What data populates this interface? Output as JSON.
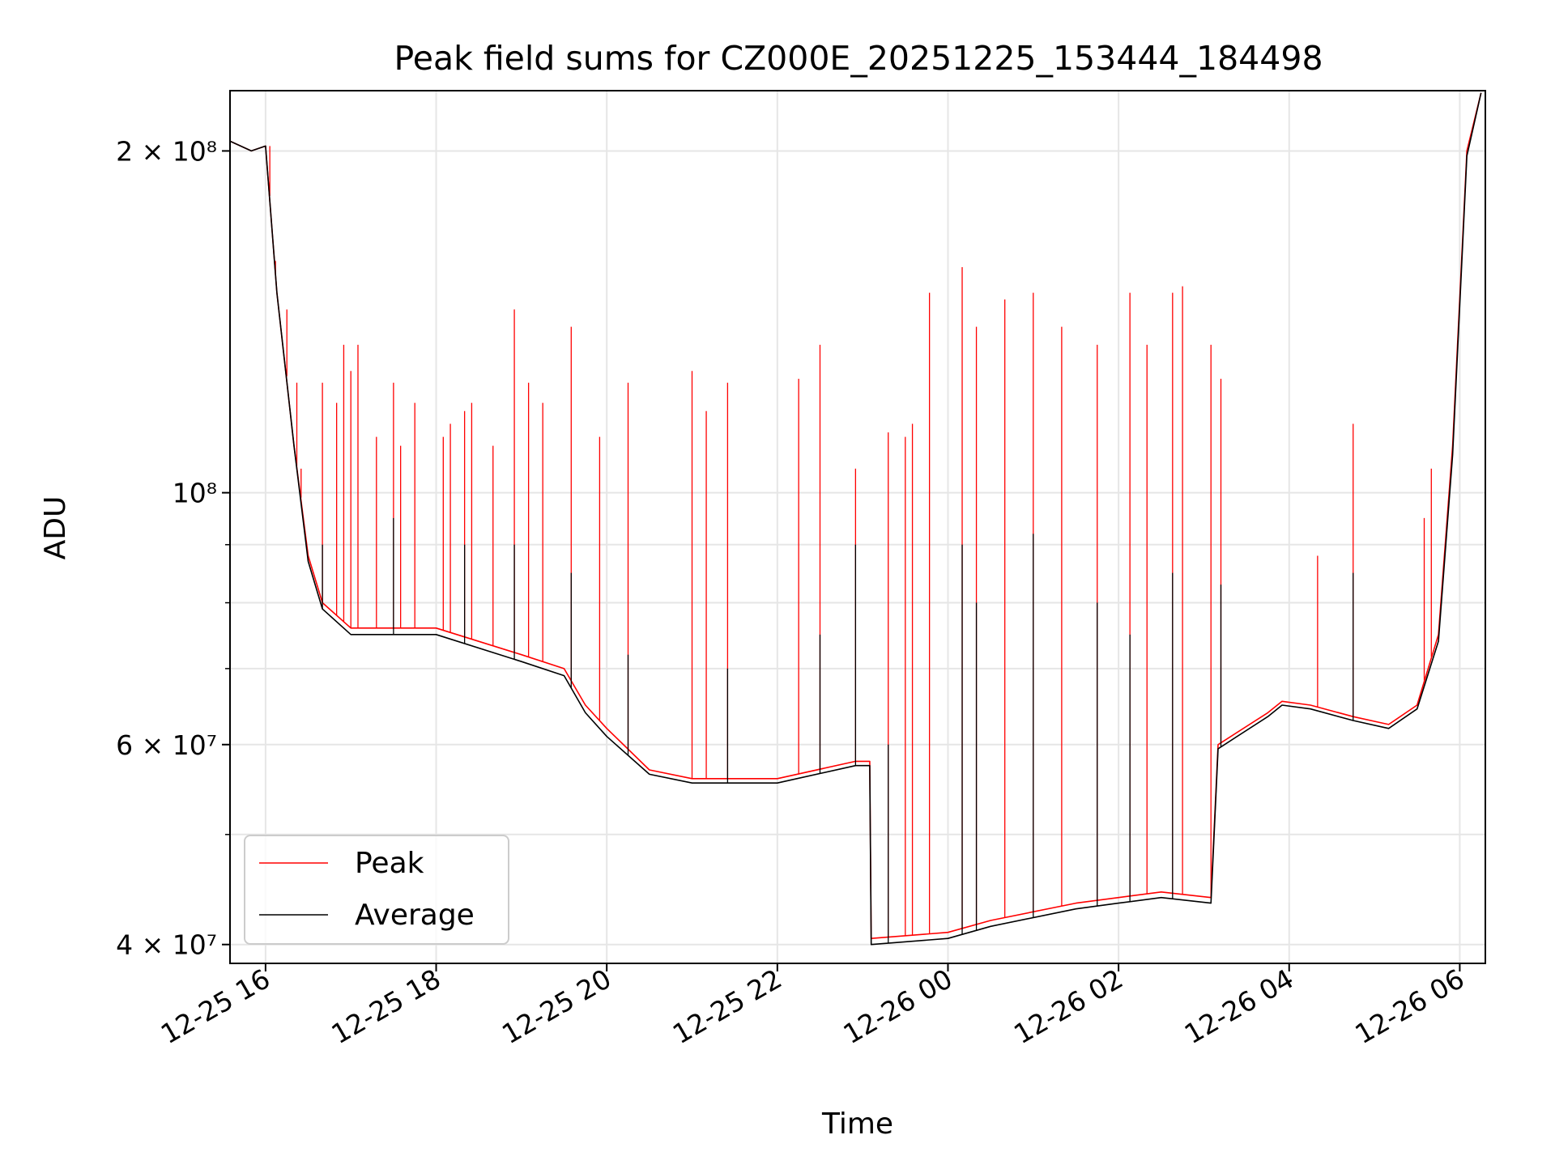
{
  "chart_data": {
    "type": "line",
    "title": "Peak field sums for CZ000E_20251225_153444_184498",
    "xlabel": "Time",
    "ylabel": "ADU",
    "y_scale": "log",
    "ylim": [
      38500000,
      226000000
    ],
    "xlim": [
      "2025-12-25 15:35",
      "2025-12-26 06:18"
    ],
    "x_ticks": [
      {
        "time": "2025-12-25 16:00",
        "label": "12-25 16"
      },
      {
        "time": "2025-12-25 18:00",
        "label": "12-25 18"
      },
      {
        "time": "2025-12-25 20:00",
        "label": "12-25 20"
      },
      {
        "time": "2025-12-25 22:00",
        "label": "12-25 22"
      },
      {
        "time": "2025-12-26 00:00",
        "label": "12-26 00"
      },
      {
        "time": "2025-12-26 02:00",
        "label": "12-26 02"
      },
      {
        "time": "2025-12-26 04:00",
        "label": "12-26 04"
      },
      {
        "time": "2025-12-26 06:00",
        "label": "12-26 06"
      }
    ],
    "y_ticks": [
      {
        "value": 40000000,
        "label": "4 × 10⁷"
      },
      {
        "value": 60000000,
        "label": "6 × 10⁷"
      },
      {
        "value": 100000000,
        "label": "10⁸"
      },
      {
        "value": 200000000,
        "label": "2 × 10⁸"
      }
    ],
    "y_minor_ticks": [
      50000000,
      70000000,
      80000000,
      90000000
    ],
    "grid": true,
    "legend": {
      "position": "lower-left"
    },
    "series": [
      {
        "name": "Peak",
        "color": "#ff0000",
        "baseline": [
          [
            "2025-12-25 15:35",
            204000000
          ],
          [
            "2025-12-25 15:50",
            200000000
          ],
          [
            "2025-12-25 16:00",
            202000000
          ],
          [
            "2025-12-25 16:08",
            150000000
          ],
          [
            "2025-12-25 16:20",
            110000000
          ],
          [
            "2025-12-25 16:30",
            88000000
          ],
          [
            "2025-12-25 16:40",
            80000000
          ],
          [
            "2025-12-25 17:00",
            76000000
          ],
          [
            "2025-12-25 18:00",
            76000000
          ],
          [
            "2025-12-25 19:00",
            72000000
          ],
          [
            "2025-12-25 19:30",
            70000000
          ],
          [
            "2025-12-25 19:45",
            65000000
          ],
          [
            "2025-12-25 20:00",
            62000000
          ],
          [
            "2025-12-25 20:30",
            57000000
          ],
          [
            "2025-12-25 21:00",
            56000000
          ],
          [
            "2025-12-25 22:00",
            56000000
          ],
          [
            "2025-12-25 22:55",
            58000000
          ],
          [
            "2025-12-25 23:05",
            58000000
          ],
          [
            "2025-12-25 23:06",
            40500000
          ],
          [
            "2025-12-26 00:00",
            41000000
          ],
          [
            "2025-12-26 00:30",
            42000000
          ],
          [
            "2025-12-26 01:30",
            43500000
          ],
          [
            "2025-12-26 02:00",
            44000000
          ],
          [
            "2025-12-26 02:30",
            44500000
          ],
          [
            "2025-12-26 03:05",
            44000000
          ],
          [
            "2025-12-26 03:10",
            60000000
          ],
          [
            "2025-12-26 03:45",
            64000000
          ],
          [
            "2025-12-26 03:55",
            65500000
          ],
          [
            "2025-12-26 04:15",
            65000000
          ],
          [
            "2025-12-26 04:45",
            63500000
          ],
          [
            "2025-12-26 05:10",
            62500000
          ],
          [
            "2025-12-26 05:30",
            65000000
          ],
          [
            "2025-12-26 05:45",
            75000000
          ],
          [
            "2025-12-26 05:55",
            110000000
          ],
          [
            "2025-12-26 06:05",
            200000000
          ],
          [
            "2025-12-26 06:15",
            225000000
          ]
        ],
        "spikes": [
          [
            "2025-12-25 16:03",
            202000000
          ],
          [
            "2025-12-25 16:07",
            160000000
          ],
          [
            "2025-12-25 16:15",
            145000000
          ],
          [
            "2025-12-25 16:22",
            125000000
          ],
          [
            "2025-12-25 16:25",
            105000000
          ],
          [
            "2025-12-25 16:40",
            125000000
          ],
          [
            "2025-12-25 16:50",
            120000000
          ],
          [
            "2025-12-25 16:55",
            135000000
          ],
          [
            "2025-12-25 17:00",
            128000000
          ],
          [
            "2025-12-25 17:05",
            135000000
          ],
          [
            "2025-12-25 17:18",
            112000000
          ],
          [
            "2025-12-25 17:30",
            125000000
          ],
          [
            "2025-12-25 17:35",
            110000000
          ],
          [
            "2025-12-25 17:45",
            120000000
          ],
          [
            "2025-12-25 18:05",
            112000000
          ],
          [
            "2025-12-25 18:10",
            115000000
          ],
          [
            "2025-12-25 18:20",
            118000000
          ],
          [
            "2025-12-25 18:25",
            120000000
          ],
          [
            "2025-12-25 18:40",
            110000000
          ],
          [
            "2025-12-25 18:55",
            145000000
          ],
          [
            "2025-12-25 19:05",
            125000000
          ],
          [
            "2025-12-25 19:15",
            120000000
          ],
          [
            "2025-12-25 19:35",
            140000000
          ],
          [
            "2025-12-25 19:55",
            112000000
          ],
          [
            "2025-12-25 20:15",
            125000000
          ],
          [
            "2025-12-25 21:00",
            128000000
          ],
          [
            "2025-12-25 21:10",
            118000000
          ],
          [
            "2025-12-25 21:25",
            125000000
          ],
          [
            "2025-12-25 22:15",
            126000000
          ],
          [
            "2025-12-25 22:30",
            135000000
          ],
          [
            "2025-12-25 22:55",
            105000000
          ],
          [
            "2025-12-25 23:18",
            113000000
          ],
          [
            "2025-12-25 23:30",
            112000000
          ],
          [
            "2025-12-25 23:35",
            115000000
          ],
          [
            "2025-12-25 23:47",
            150000000
          ],
          [
            "2025-12-26 00:10",
            158000000
          ],
          [
            "2025-12-26 00:20",
            140000000
          ],
          [
            "2025-12-26 00:40",
            148000000
          ],
          [
            "2025-12-26 01:00",
            150000000
          ],
          [
            "2025-12-26 01:20",
            140000000
          ],
          [
            "2025-12-26 01:45",
            135000000
          ],
          [
            "2025-12-26 02:08",
            150000000
          ],
          [
            "2025-12-26 02:20",
            135000000
          ],
          [
            "2025-12-26 02:38",
            150000000
          ],
          [
            "2025-12-26 02:45",
            152000000
          ],
          [
            "2025-12-26 03:05",
            135000000
          ],
          [
            "2025-12-26 03:12",
            126000000
          ],
          [
            "2025-12-26 04:20",
            88000000
          ],
          [
            "2025-12-26 04:45",
            115000000
          ],
          [
            "2025-12-26 05:35",
            95000000
          ],
          [
            "2025-12-26 05:40",
            105000000
          ]
        ]
      },
      {
        "name": "Average",
        "color": "#000000",
        "baseline": [
          [
            "2025-12-25 15:35",
            204000000
          ],
          [
            "2025-12-25 15:50",
            200000000
          ],
          [
            "2025-12-25 16:00",
            202000000
          ],
          [
            "2025-12-25 16:08",
            150000000
          ],
          [
            "2025-12-25 16:20",
            110000000
          ],
          [
            "2025-12-25 16:30",
            87000000
          ],
          [
            "2025-12-25 16:40",
            79000000
          ],
          [
            "2025-12-25 17:00",
            75000000
          ],
          [
            "2025-12-25 18:00",
            75000000
          ],
          [
            "2025-12-25 19:00",
            71000000
          ],
          [
            "2025-12-25 19:30",
            69000000
          ],
          [
            "2025-12-25 19:45",
            64000000
          ],
          [
            "2025-12-25 20:00",
            61000000
          ],
          [
            "2025-12-25 20:30",
            56500000
          ],
          [
            "2025-12-25 21:00",
            55500000
          ],
          [
            "2025-12-25 22:00",
            55500000
          ],
          [
            "2025-12-25 22:55",
            57500000
          ],
          [
            "2025-12-25 23:05",
            57500000
          ],
          [
            "2025-12-25 23:06",
            40000000
          ],
          [
            "2025-12-26 00:00",
            40500000
          ],
          [
            "2025-12-26 00:30",
            41500000
          ],
          [
            "2025-12-26 01:30",
            43000000
          ],
          [
            "2025-12-26 02:00",
            43500000
          ],
          [
            "2025-12-26 02:30",
            44000000
          ],
          [
            "2025-12-26 03:05",
            43500000
          ],
          [
            "2025-12-26 03:10",
            59500000
          ],
          [
            "2025-12-26 03:45",
            63500000
          ],
          [
            "2025-12-26 03:55",
            65000000
          ],
          [
            "2025-12-26 04:15",
            64500000
          ],
          [
            "2025-12-26 04:45",
            63000000
          ],
          [
            "2025-12-26 05:10",
            62000000
          ],
          [
            "2025-12-26 05:30",
            64500000
          ],
          [
            "2025-12-26 05:45",
            74000000
          ],
          [
            "2025-12-26 05:55",
            108000000
          ],
          [
            "2025-12-26 06:05",
            198000000
          ],
          [
            "2025-12-26 06:15",
            225000000
          ]
        ],
        "spikes": [
          [
            "2025-12-25 16:40",
            90000000
          ],
          [
            "2025-12-25 17:30",
            95000000
          ],
          [
            "2025-12-25 18:20",
            90000000
          ],
          [
            "2025-12-25 18:55",
            90000000
          ],
          [
            "2025-12-25 19:35",
            85000000
          ],
          [
            "2025-12-25 20:15",
            72000000
          ],
          [
            "2025-12-25 21:25",
            70000000
          ],
          [
            "2025-12-25 22:30",
            75000000
          ],
          [
            "2025-12-25 22:55",
            90000000
          ],
          [
            "2025-12-25 23:18",
            60000000
          ],
          [
            "2025-12-26 00:10",
            90000000
          ],
          [
            "2025-12-26 00:20",
            80000000
          ],
          [
            "2025-12-26 01:00",
            92000000
          ],
          [
            "2025-12-26 01:45",
            80000000
          ],
          [
            "2025-12-26 02:08",
            75000000
          ],
          [
            "2025-12-26 02:38",
            85000000
          ],
          [
            "2025-12-26 03:12",
            83000000
          ],
          [
            "2025-12-26 04:45",
            85000000
          ]
        ]
      }
    ]
  }
}
